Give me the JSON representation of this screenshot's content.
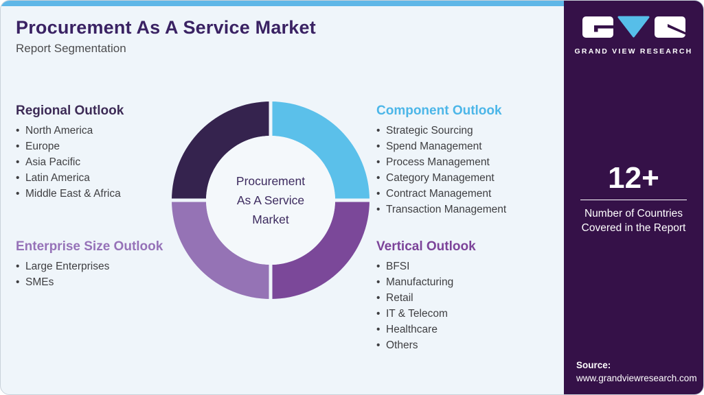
{
  "header": {
    "title": "Procurement As A Service Market",
    "subtitle": "Report Segmentation"
  },
  "sections": [
    {
      "title": "Regional Outlook",
      "color": "#3d2b56",
      "items": [
        "North America",
        "Europe",
        "Asia Pacific",
        "Latin America",
        "Middle East & Africa"
      ]
    },
    {
      "title": "Component Outlook",
      "color": "#4cb6e8",
      "items": [
        "Strategic Sourcing",
        "Spend Management",
        "Process Management",
        "Category Management",
        "Contract Management",
        "Transaction Management"
      ]
    },
    {
      "title": "Enterprise Size Outlook",
      "color": "#9672b8",
      "items": [
        "Large Enterprises",
        "SMEs"
      ]
    },
    {
      "title": "Vertical Outlook",
      "color": "#7c4399",
      "items": [
        "BFSI",
        "Manufacturing",
        "Retail",
        "IT & Telecom",
        "Healthcare",
        "Others"
      ]
    }
  ],
  "chart_data": {
    "type": "pie",
    "donut": true,
    "title": "Procurement As A Service Market",
    "center_label": "Procurement As A Service Market",
    "center_label_lines": [
      "Procurement",
      "As A Service",
      "Market"
    ],
    "legend_position": "none",
    "slices": [
      {
        "label": "Regional Outlook",
        "value": 25,
        "color": "#35234e",
        "position": "top-left"
      },
      {
        "label": "Component Outlook",
        "value": 25,
        "color": "#5bc0ea",
        "position": "top-right"
      },
      {
        "label": "Vertical Outlook",
        "value": 25,
        "color": "#7b4899",
        "position": "bottom-right"
      },
      {
        "label": "Enterprise Size Outlook",
        "value": 25,
        "color": "#9573b5",
        "position": "bottom-left"
      }
    ]
  },
  "sidebar": {
    "logo_text": "GRAND VIEW RESEARCH",
    "stat_value": "12+",
    "stat_label": "Number of Countries Covered in the Report",
    "source_label": "Source:",
    "source_url": "www.grandviewresearch.com"
  },
  "colors": {
    "accent_stripe": "#5fb7e7",
    "card_background": "#eff5fa",
    "sidebar_background": "#351148",
    "title_text": "#3a2263",
    "body_text": "#3e3e41"
  }
}
